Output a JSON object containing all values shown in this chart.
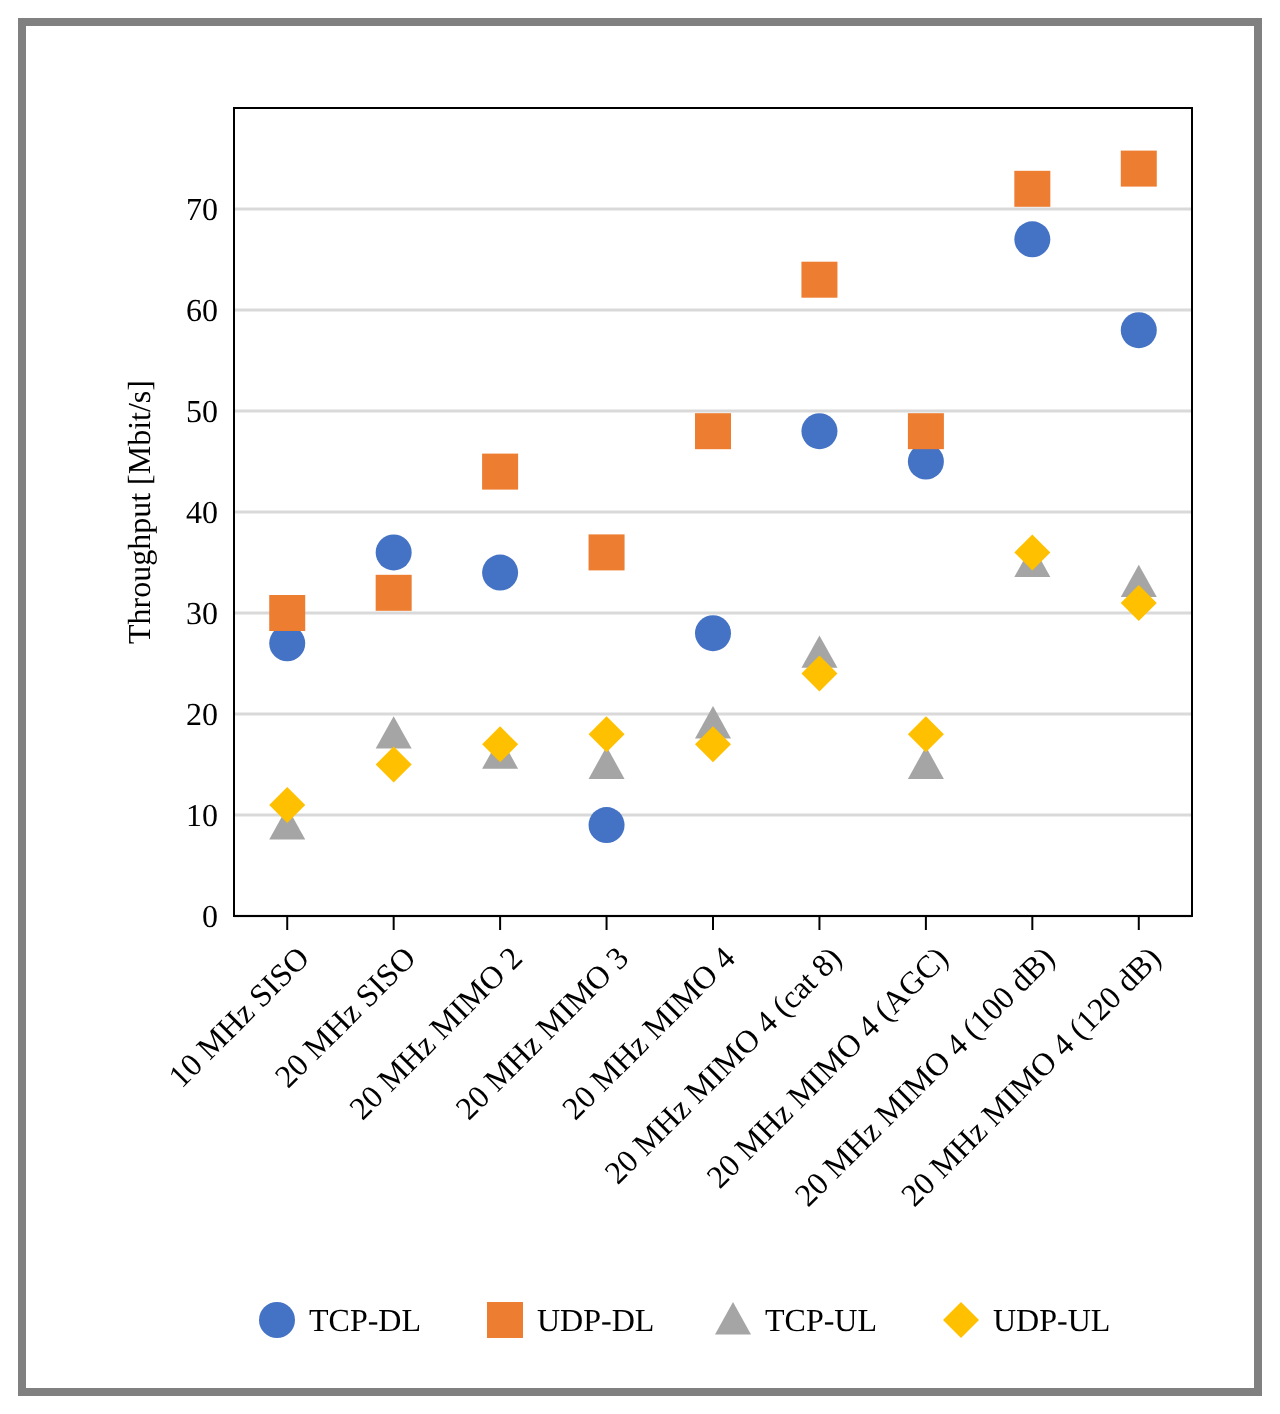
{
  "chart_data": {
    "type": "scatter",
    "ylabel": "Throughput [Mbit/s]",
    "categories": [
      "10 MHz SISO",
      "20 MHz SISO",
      "20 MHz MIMO 2",
      "20 MHz MIMO 3",
      "20 MHz MIMO 4",
      "20 MHz MIMO 4 (cat 8)",
      "20 MHz MIMO 4 (AGC)",
      "20 MHz MIMO 4 (100 dB)",
      "20 MHz MIMO 4 (120 dB)"
    ],
    "series": [
      {
        "name": "TCP-DL",
        "color": "#4472c4",
        "marker": "circle",
        "values": [
          27,
          36,
          34,
          9,
          28,
          48,
          45,
          67,
          58
        ]
      },
      {
        "name": "UDP-DL",
        "color": "#ed7d31",
        "marker": "square",
        "values": [
          30,
          32,
          44,
          36,
          48,
          63,
          48,
          72,
          74
        ]
      },
      {
        "name": "TCP-UL",
        "color": "#a5a5a5",
        "marker": "triangle",
        "values": [
          9,
          18,
          16,
          15,
          19,
          26,
          15,
          35,
          33
        ]
      },
      {
        "name": "UDP-UL",
        "color": "#ffc000",
        "marker": "diamond",
        "values": [
          11,
          15,
          17,
          18,
          17,
          24,
          18,
          36,
          31
        ]
      }
    ],
    "ylim": [
      0,
      80
    ],
    "yticks": [
      0,
      10,
      20,
      30,
      40,
      50,
      60,
      70
    ],
    "grid": "y",
    "legend": "bottom"
  }
}
